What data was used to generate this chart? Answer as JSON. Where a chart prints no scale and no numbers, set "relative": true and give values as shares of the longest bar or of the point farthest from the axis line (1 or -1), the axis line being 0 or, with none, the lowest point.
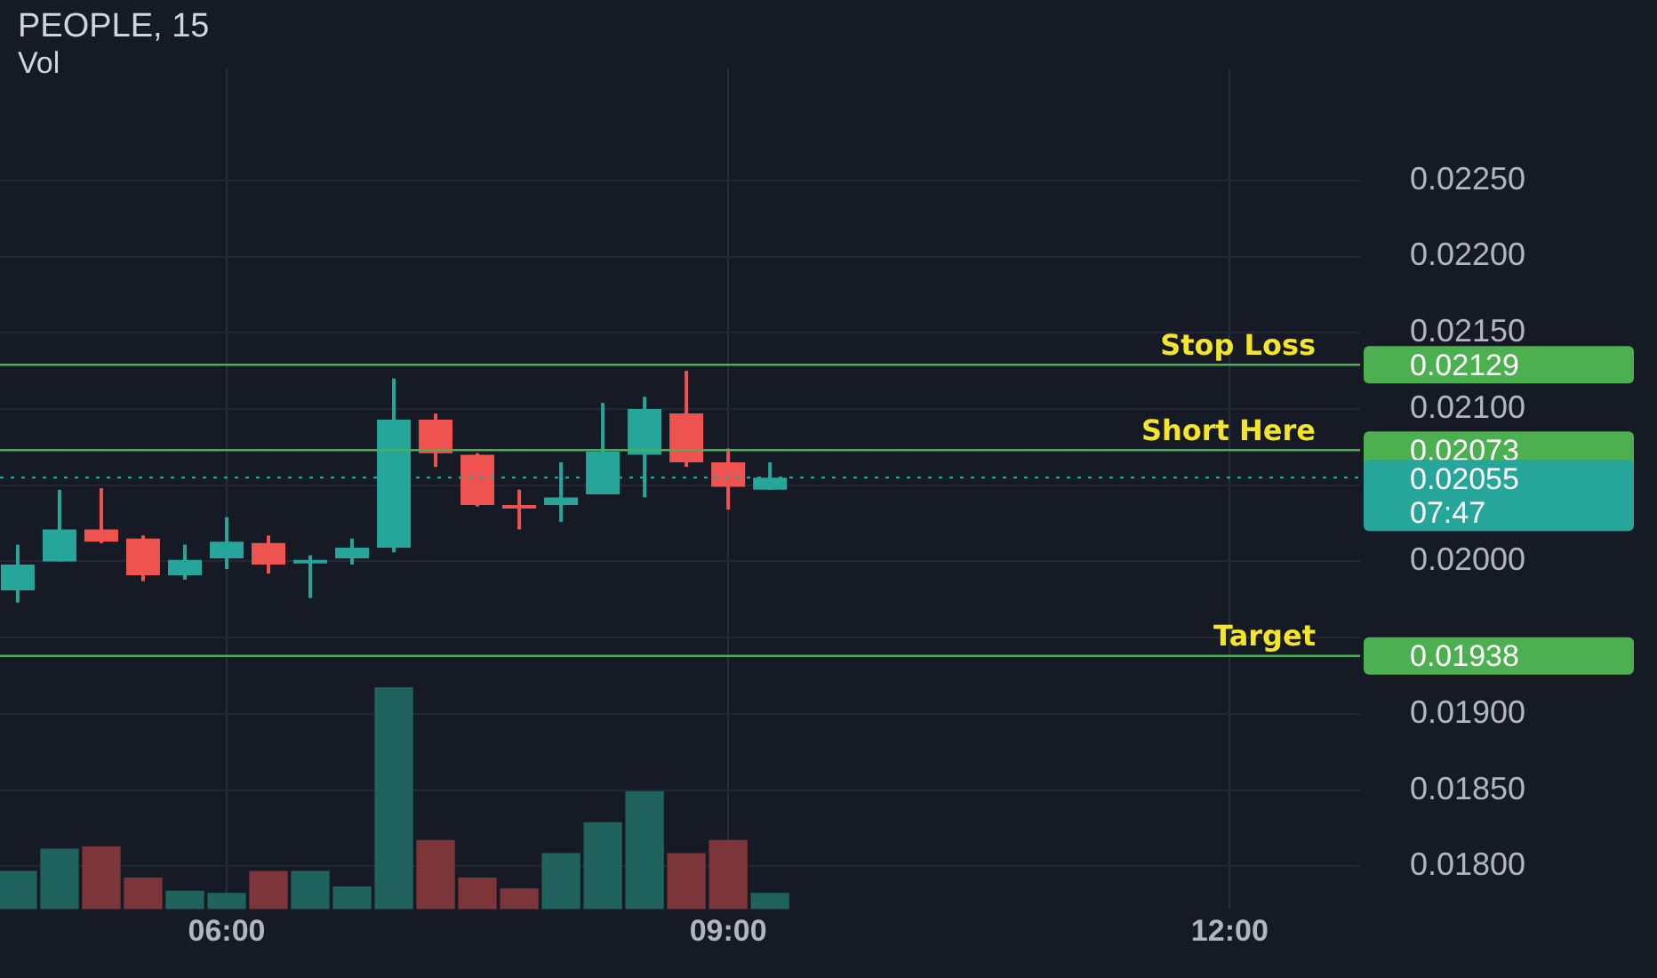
{
  "chart_data": [
    {
      "type": "candlestick",
      "title": "PEOPLE, 15",
      "x": [
        4.75,
        5,
        5.25,
        5.5,
        5.75,
        6,
        6.25,
        6.5,
        6.75,
        7,
        7.25,
        7.5,
        7.75,
        8,
        8.25,
        8.5,
        8.75,
        9,
        9.25
      ],
      "ohlc": [
        [
          0.01981,
          0.02011,
          0.01973,
          0.01998
        ],
        [
          0.02,
          0.02047,
          0.02,
          0.02021
        ],
        [
          0.02021,
          0.02048,
          0.02012,
          0.02013
        ],
        [
          0.02015,
          0.02017,
          0.01987,
          0.01991
        ],
        [
          0.01991,
          0.02011,
          0.01988,
          0.02001
        ],
        [
          0.02002,
          0.02029,
          0.01995,
          0.02013
        ],
        [
          0.02012,
          0.02017,
          0.01992,
          0.01998
        ],
        [
          0.02,
          0.02004,
          0.01976,
          0.02001
        ],
        [
          0.02002,
          0.02015,
          0.01998,
          0.02009
        ],
        [
          0.02009,
          0.0212,
          0.02006,
          0.02093
        ],
        [
          0.02093,
          0.02097,
          0.02062,
          0.02071
        ],
        [
          0.0207,
          0.02071,
          0.02036,
          0.02037
        ],
        [
          0.02037,
          0.02047,
          0.02021,
          0.02035
        ],
        [
          0.02037,
          0.02065,
          0.02026,
          0.02042
        ],
        [
          0.02044,
          0.02104,
          0.02044,
          0.02072
        ],
        [
          0.0207,
          0.02108,
          0.02042,
          0.021
        ],
        [
          0.02097,
          0.02125,
          0.02062,
          0.02065
        ],
        [
          0.02065,
          0.02074,
          0.02034,
          0.02049
        ],
        [
          0.02047,
          0.02065,
          0.02047,
          0.02055
        ]
      ],
      "xlim": [
        4.644,
        12.78
      ],
      "xticks": [
        {
          "value": 6,
          "label": "06:00"
        },
        {
          "value": 9,
          "label": "09:00"
        },
        {
          "value": 12,
          "label": "12:00"
        }
      ],
      "ylim": [
        0.01772,
        0.02323
      ],
      "yticks": [
        {
          "value": 0.018,
          "label": "0.01800"
        },
        {
          "value": 0.0185,
          "label": "0.01850"
        },
        {
          "value": 0.019,
          "label": "0.01900"
        },
        {
          "value": 0.0195,
          "label": null
        },
        {
          "value": 0.02,
          "label": "0.02000"
        },
        {
          "value": 0.0205,
          "label": null
        },
        {
          "value": 0.021,
          "label": "0.02100"
        },
        {
          "value": 0.0215,
          "label": "0.02150"
        },
        {
          "value": 0.022,
          "label": "0.02200"
        },
        {
          "value": 0.0225,
          "label": "0.02250"
        }
      ],
      "ref_lines": [
        {
          "axis": "y",
          "value": 0.02129,
          "label": "Stop Loss",
          "color": "#4caf50"
        },
        {
          "axis": "y",
          "value": 0.02073,
          "label": "Short Here",
          "color": "#4caf50"
        },
        {
          "axis": "y",
          "value": 0.01938,
          "label": "Target",
          "color": "#4caf50"
        },
        {
          "axis": "y",
          "value": 0.02055,
          "label": "0.02055",
          "color": "#26a69a",
          "line_style": "dotted"
        }
      ],
      "annotations": [
        "0.02129",
        "0.02073",
        "0.01938",
        "07:47"
      ],
      "grid": true
    },
    {
      "type": "bar",
      "title": "Vol",
      "relative": true,
      "categories": [
        null,
        null,
        null,
        null,
        null,
        null,
        null,
        null,
        null,
        null,
        null,
        null,
        null,
        null,
        null,
        null,
        null,
        null,
        null
      ],
      "values": [
        0.17,
        0.27,
        0.28,
        0.14,
        0.08,
        0.07,
        0.17,
        0.17,
        0.1,
        1,
        0.31,
        0.14,
        0.09,
        0.25,
        0.39,
        0.53,
        0.25,
        0.31,
        0.07
      ],
      "colors": [
        "#1f625e",
        "#1f625e",
        "#7c3538",
        "#7c3538",
        "#1f625e",
        "#1f625e",
        "#7c3538",
        "#1f625e",
        "#1f625e",
        "#1f625e",
        "#7c3538",
        "#7c3538",
        "#7c3538",
        "#1f625e",
        "#1f625e",
        "#1f625e",
        "#7c3538",
        "#7c3538",
        "#1f625e"
      ],
      "tick_labels": false
    }
  ]
}
